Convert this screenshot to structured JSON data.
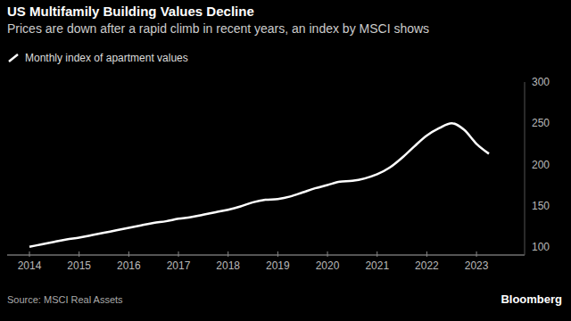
{
  "chart_data": {
    "type": "line",
    "title": "US Multifamily Building Values Decline",
    "subtitle": "Prices are down after a rapid climb in recent years, an index by MSCI shows",
    "source": "Source: MSCI Real Assets",
    "credit": "Bloomberg",
    "categories": [
      "2014",
      null,
      null,
      null,
      "2015",
      null,
      null,
      null,
      "2016",
      null,
      null,
      null,
      "2017",
      null,
      null,
      null,
      "2018",
      null,
      null,
      null,
      "2019",
      null,
      null,
      null,
      "2020",
      null,
      null,
      null,
      "2021",
      null,
      null,
      null,
      "2022",
      null,
      null,
      null,
      "2023",
      null
    ],
    "series": [
      {
        "name": "Monthly index of apartment values",
        "color": "#ffffff",
        "values": [
          100,
          103,
          106,
          109,
          111,
          114,
          117,
          120,
          123,
          126,
          129,
          131,
          134,
          136,
          139,
          142,
          145,
          149,
          154,
          157,
          158,
          161,
          166,
          171,
          175,
          179,
          180,
          183,
          188,
          196,
          208,
          222,
          235,
          244,
          250,
          242,
          225,
          213
        ]
      }
    ],
    "ylim": [
      90,
      300
    ],
    "yticks": [
      100,
      150,
      200,
      250,
      300
    ],
    "grid": false,
    "legend": "top-left"
  }
}
